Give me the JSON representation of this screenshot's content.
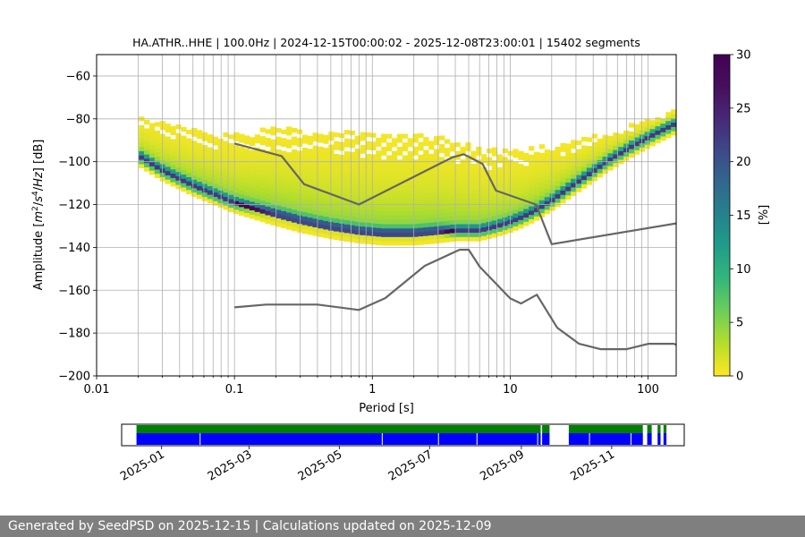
{
  "chart_data": [
    {
      "type": "heatmap",
      "title": "HA.ATHR..HHE | 100.0Hz | 2024-12-15T00:00:02 - 2025-12-08T23:00:01 | 15402 segments",
      "xlabel": "Period [s]",
      "ylabel_parts": [
        "Amplitude [",
        "m",
        "2",
        "/",
        "s",
        "4",
        "/",
        "Hz",
        "] [dB]"
      ],
      "xscale": "log",
      "xlim": [
        0.01,
        160
      ],
      "ylim": [
        -200,
        -50
      ],
      "xticks": [
        0.01,
        0.1,
        1,
        10,
        100
      ],
      "xtick_labels": [
        "0.01",
        "0.1",
        "1",
        "10",
        "100"
      ],
      "yticks": [
        -200,
        -180,
        -160,
        -140,
        -120,
        -100,
        -80,
        -60
      ],
      "ytick_labels": [
        "−200",
        "−180",
        "−160",
        "−140",
        "−120",
        "−100",
        "−80",
        "−60"
      ],
      "grid": "on",
      "psd_mode_curve": {
        "period": [
          0.02,
          0.03,
          0.05,
          0.1,
          0.2,
          0.3,
          0.5,
          0.8,
          1.2,
          2,
          3,
          4,
          5,
          6,
          8,
          10,
          12,
          15,
          20,
          30,
          50,
          80,
          120,
          160
        ],
        "db": [
          -98,
          -105,
          -112,
          -120,
          -125,
          -128,
          -131,
          -133,
          -134,
          -134,
          -133,
          -133,
          -133,
          -133,
          -131,
          -129,
          -127,
          -124,
          -119,
          -111,
          -101,
          -93,
          -87,
          -83
        ]
      },
      "psd_upper_spread_db": [
        18,
        22,
        26,
        32,
        40,
        42,
        44,
        46,
        46,
        46,
        44,
        42,
        40,
        38,
        36,
        34,
        32,
        30,
        26,
        20,
        14,
        10,
        7,
        6
      ],
      "psd_lower_spread_db": [
        2,
        2,
        2,
        2,
        3,
        3,
        3,
        3,
        3,
        3,
        3,
        2,
        2,
        2,
        2,
        2,
        2,
        2,
        2,
        2,
        2,
        2,
        2,
        2
      ],
      "nhnm": {
        "period": [
          0.1,
          0.22,
          0.32,
          0.8,
          3.8,
          4.6,
          6.3,
          7.9,
          15.4,
          20,
          160
        ],
        "db": [
          -91.5,
          -97.4,
          -110.5,
          -120,
          -98,
          -96.5,
          -101,
          -113.5,
          -120,
          -138.5,
          -128.8
        ]
      },
      "nlnm": {
        "period": [
          0.1,
          0.17,
          0.4,
          0.8,
          1.24,
          2.4,
          4.3,
          5,
          6,
          10,
          12,
          15.6,
          21.9,
          31.6,
          45,
          70,
          101,
          154,
          160
        ],
        "db": [
          -168,
          -166.7,
          -166.7,
          -169.2,
          -163.7,
          -148.6,
          -141.1,
          -141.1,
          -149,
          -163.8,
          -166.2,
          -162.1,
          -177.5,
          -185,
          -187.5,
          -187.5,
          -185,
          -185,
          -185.5
        ]
      },
      "colorbar": {
        "label": "[%]",
        "range": [
          0,
          30
        ],
        "ticks": [
          0,
          5,
          10,
          15,
          20,
          25,
          30
        ],
        "tick_labels": [
          "0",
          "5",
          "10",
          "15",
          "20",
          "25",
          "30"
        ],
        "colormap": "viridis_r"
      }
    },
    {
      "type": "timeline",
      "xlim": [
        "2024-12-05",
        "2025-12-20"
      ],
      "ticks": [
        "2025-01-01",
        "2025-03-01",
        "2025-05-01",
        "2025-07-01",
        "2025-09-01",
        "2025-11-01"
      ],
      "tick_labels": [
        "2025-01",
        "2025-03",
        "2025-05",
        "2025-07",
        "2025-09",
        "2025-11"
      ],
      "series": [
        {
          "color": "#008000",
          "spans": [
            [
              "2024-12-15",
              "2025-09-14"
            ],
            [
              "2025-09-15",
              "2025-09-20"
            ],
            [
              "2025-10-03",
              "2025-11-22"
            ],
            [
              "2025-11-25",
              "2025-11-28"
            ],
            [
              "2025-12-02",
              "2025-12-04"
            ],
            [
              "2025-12-06",
              "2025-12-08"
            ]
          ]
        },
        {
          "color": "#0000ff",
          "spans": [
            [
              "2024-12-15",
              "2025-09-14"
            ],
            [
              "2025-09-15",
              "2025-09-20"
            ],
            [
              "2025-10-03",
              "2025-11-22"
            ],
            [
              "2025-11-25",
              "2025-11-28"
            ],
            [
              "2025-12-02",
              "2025-12-04"
            ],
            [
              "2025-12-06",
              "2025-12-08"
            ]
          ]
        }
      ],
      "gaps": [
        "2025-01-27",
        "2025-05-30",
        "2025-07-07",
        "2025-08-02",
        "2025-09-12",
        "2025-10-17",
        "2025-11-14"
      ]
    }
  ],
  "footer": "Generated by SeedPSD on 2025-12-15 | Calculations updated on 2025-12-09"
}
